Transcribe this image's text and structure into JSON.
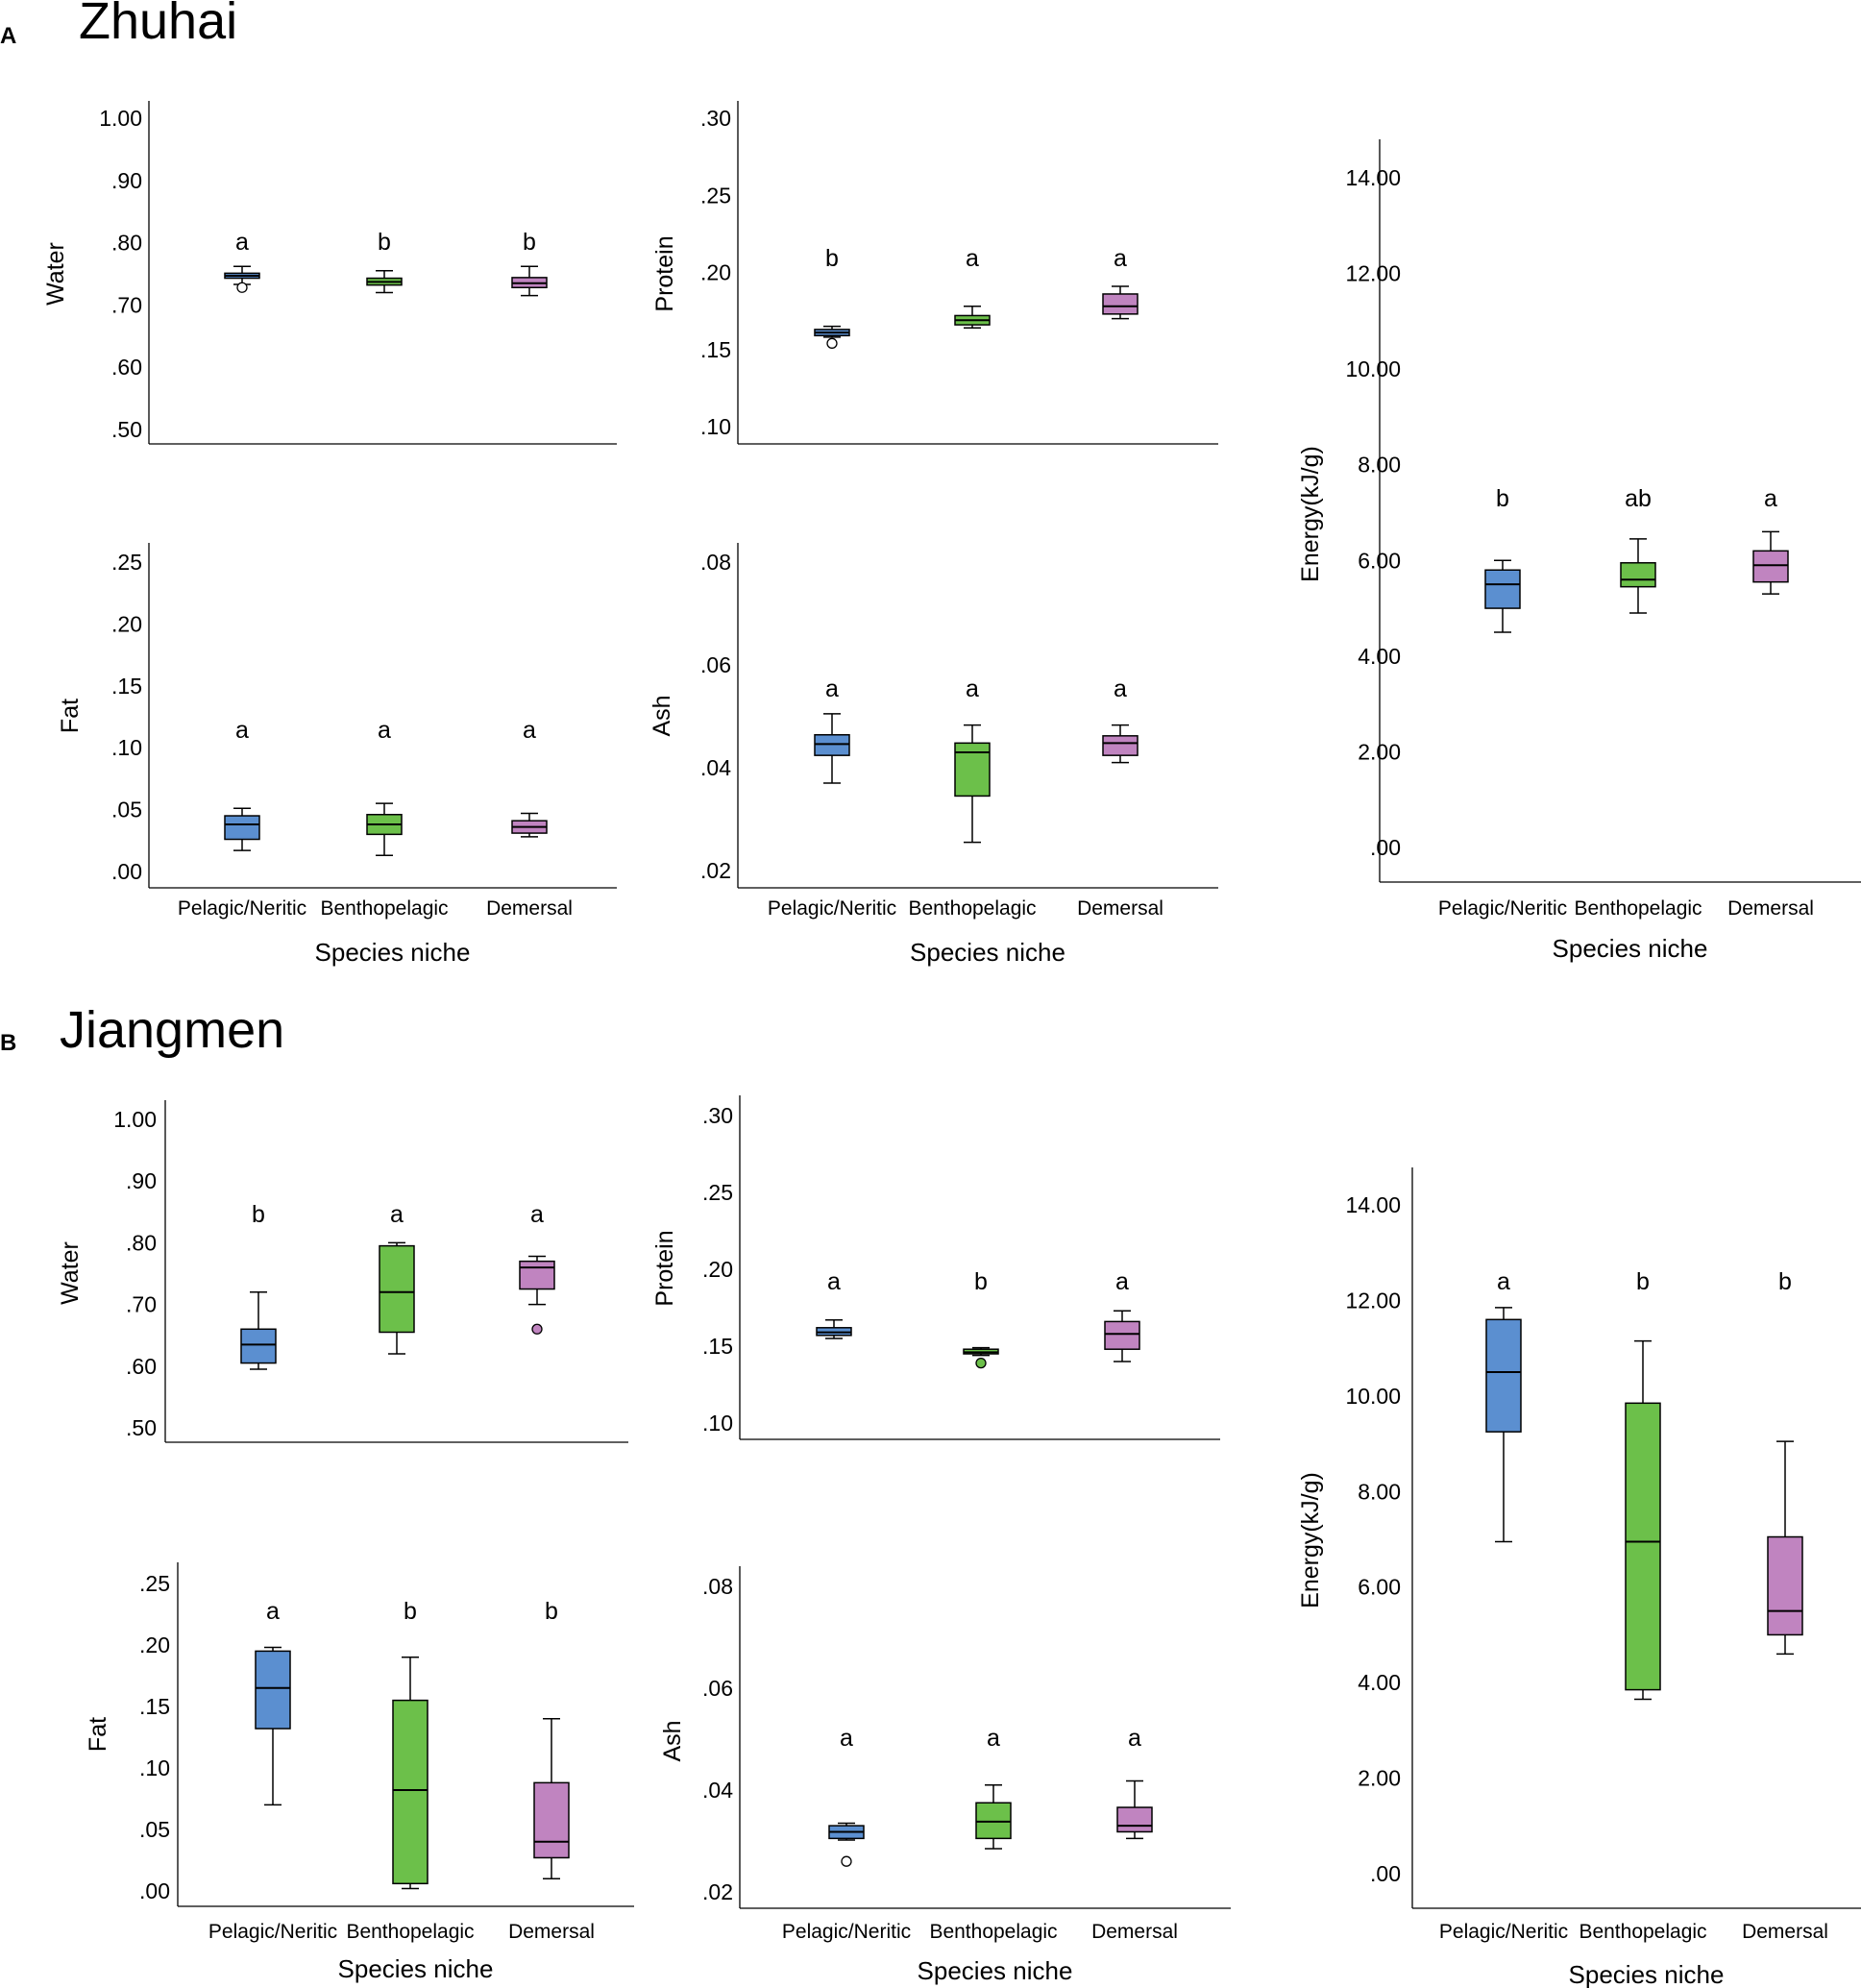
{
  "panels": {
    "A": {
      "letter": "A",
      "title": "Zhuhai"
    },
    "B": {
      "letter": "B",
      "title": "Jiangmen"
    }
  },
  "colors": {
    "pelagic": "#5b8fd0",
    "benthopelagic": "#6cc04a",
    "demersal": "#c084c0"
  },
  "chart_data": [
    {
      "id": "zh-water",
      "type": "box",
      "panel": "A",
      "ylabel": "Water",
      "xlabel": "",
      "ylim": [
        0.5,
        1.0
      ],
      "ticks": [
        1.0,
        0.9,
        0.8,
        0.7,
        0.6,
        0.5
      ],
      "tick_labels": [
        "1.00",
        ".90",
        ".80",
        ".70",
        ".60",
        ".50"
      ],
      "categories": [
        "Pelagic/Neritic",
        "Benthopelagic",
        "Demersal"
      ],
      "show_categories": false,
      "boxes": [
        {
          "min": 0.733,
          "q1": 0.743,
          "median": 0.747,
          "q3": 0.751,
          "max": 0.762,
          "outliers": [
            0.728
          ],
          "letter": "a"
        },
        {
          "min": 0.72,
          "q1": 0.732,
          "median": 0.737,
          "q3": 0.743,
          "max": 0.755,
          "outliers": [],
          "letter": "b"
        },
        {
          "min": 0.715,
          "q1": 0.728,
          "median": 0.735,
          "q3": 0.744,
          "max": 0.762,
          "outliers": [],
          "letter": "b"
        }
      ]
    },
    {
      "id": "zh-protein",
      "type": "box",
      "panel": "A",
      "ylabel": "Protein",
      "xlabel": "",
      "ylim": [
        0.1,
        0.3
      ],
      "ticks": [
        0.3,
        0.25,
        0.2,
        0.15,
        0.1
      ],
      "tick_labels": [
        ".30",
        ".25",
        ".20",
        ".15",
        ".10"
      ],
      "categories": [
        "Pelagic/Neritic",
        "Benthopelagic",
        "Demersal"
      ],
      "show_categories": false,
      "boxes": [
        {
          "min": 0.158,
          "q1": 0.159,
          "median": 0.161,
          "q3": 0.163,
          "max": 0.165,
          "outliers": [
            0.154
          ],
          "letter": "b"
        },
        {
          "min": 0.164,
          "q1": 0.166,
          "median": 0.169,
          "q3": 0.172,
          "max": 0.178,
          "outliers": [],
          "letter": "a"
        },
        {
          "min": 0.17,
          "q1": 0.173,
          "median": 0.178,
          "q3": 0.186,
          "max": 0.191,
          "outliers": [],
          "letter": "a"
        }
      ]
    },
    {
      "id": "zh-fat",
      "type": "box",
      "panel": "A",
      "ylabel": "Fat",
      "xlabel": "Species niche",
      "ylim": [
        0.0,
        0.25
      ],
      "ticks": [
        0.25,
        0.2,
        0.15,
        0.1,
        0.05,
        0.0
      ],
      "tick_labels": [
        ".25",
        ".20",
        ".15",
        ".10",
        ".05",
        ".00"
      ],
      "categories": [
        "Pelagic/Neritic",
        "Benthopelagic",
        "Demersal"
      ],
      "show_categories": true,
      "boxes": [
        {
          "min": 0.017,
          "q1": 0.026,
          "median": 0.038,
          "q3": 0.045,
          "max": 0.051,
          "outliers": [],
          "letter": "a"
        },
        {
          "min": 0.013,
          "q1": 0.03,
          "median": 0.038,
          "q3": 0.046,
          "max": 0.055,
          "outliers": [],
          "letter": "a"
        },
        {
          "min": 0.028,
          "q1": 0.031,
          "median": 0.036,
          "q3": 0.041,
          "max": 0.047,
          "outliers": [],
          "letter": "a"
        }
      ]
    },
    {
      "id": "zh-ash",
      "type": "box",
      "panel": "A",
      "ylabel": "Ash",
      "xlabel": "Species niche",
      "ylim": [
        0.02,
        0.08
      ],
      "ticks": [
        0.08,
        0.06,
        0.04,
        0.02
      ],
      "tick_labels": [
        ".08",
        ".06",
        ".04",
        ".02"
      ],
      "categories": [
        "Pelagic/Neritic",
        "Benthopelagic",
        "Demersal"
      ],
      "show_categories": true,
      "boxes": [
        {
          "min": 0.037,
          "q1": 0.0424,
          "median": 0.0446,
          "q3": 0.0464,
          "max": 0.0505,
          "outliers": [],
          "letter": "a"
        },
        {
          "min": 0.0255,
          "q1": 0.0345,
          "median": 0.043,
          "q3": 0.0448,
          "max": 0.0483,
          "outliers": [],
          "letter": "a"
        },
        {
          "min": 0.041,
          "q1": 0.0424,
          "median": 0.0448,
          "q3": 0.0462,
          "max": 0.0483,
          "outliers": [],
          "letter": "a"
        }
      ]
    },
    {
      "id": "zh-energy",
      "type": "box",
      "panel": "A",
      "ylabel": "Energy(kJ/g)",
      "xlabel": "Species niche",
      "ylim": [
        -0.7,
        14.9
      ],
      "ticks": [
        14.0,
        12.0,
        10.0,
        8.0,
        6.0,
        4.0,
        2.0,
        0.0
      ],
      "tick_labels": [
        "14.00",
        "12.00",
        "10.00",
        "8.00",
        "6.00",
        "4.00",
        "2.00",
        ".00"
      ],
      "categories": [
        "Pelagic/Neritic",
        "Benthopelagic",
        "Demersal"
      ],
      "show_categories": true,
      "boxes": [
        {
          "min": 4.5,
          "q1": 5.0,
          "median": 5.5,
          "q3": 5.8,
          "max": 6.0,
          "outliers": [],
          "letter": "b"
        },
        {
          "min": 4.9,
          "q1": 5.45,
          "median": 5.6,
          "q3": 5.95,
          "max": 6.45,
          "outliers": [],
          "letter": "ab"
        },
        {
          "min": 5.3,
          "q1": 5.55,
          "median": 5.9,
          "q3": 6.2,
          "max": 6.6,
          "outliers": [],
          "letter": "a"
        }
      ]
    },
    {
      "id": "jm-water",
      "type": "box",
      "panel": "B",
      "ylabel": "Water",
      "xlabel": "",
      "ylim": [
        0.5,
        1.0
      ],
      "ticks": [
        1.0,
        0.9,
        0.8,
        0.7,
        0.6,
        0.5
      ],
      "tick_labels": [
        "1.00",
        ".90",
        ".80",
        ".70",
        ".60",
        ".50"
      ],
      "categories": [
        "Pelagic/Neritic",
        "Benthopelagic",
        "Demersal"
      ],
      "show_categories": false,
      "boxes": [
        {
          "min": 0.595,
          "q1": 0.605,
          "median": 0.635,
          "q3": 0.66,
          "max": 0.72,
          "outliers": [],
          "letter": "b"
        },
        {
          "min": 0.62,
          "q1": 0.655,
          "median": 0.72,
          "q3": 0.795,
          "max": 0.8,
          "outliers": [],
          "letter": "a"
        },
        {
          "min": 0.7,
          "q1": 0.725,
          "median": 0.76,
          "q3": 0.77,
          "max": 0.778,
          "outliers": [
            0.66
          ],
          "letter": "a"
        }
      ]
    },
    {
      "id": "jm-protein",
      "type": "box",
      "panel": "B",
      "ylabel": "Protein",
      "xlabel": "",
      "ylim": [
        0.1,
        0.3
      ],
      "ticks": [
        0.3,
        0.25,
        0.2,
        0.15,
        0.1
      ],
      "tick_labels": [
        ".30",
        ".25",
        ".20",
        ".15",
        ".10"
      ],
      "categories": [
        "Pelagic/Neritic",
        "Benthopelagic",
        "Demersal"
      ],
      "show_categories": false,
      "boxes": [
        {
          "min": 0.155,
          "q1": 0.157,
          "median": 0.159,
          "q3": 0.162,
          "max": 0.167,
          "outliers": [],
          "letter": "a"
        },
        {
          "min": 0.144,
          "q1": 0.145,
          "median": 0.146,
          "q3": 0.148,
          "max": 0.149,
          "outliers": [
            0.139
          ],
          "letter": "b"
        },
        {
          "min": 0.14,
          "q1": 0.148,
          "median": 0.158,
          "q3": 0.166,
          "max": 0.173,
          "outliers": [],
          "letter": "a"
        }
      ]
    },
    {
      "id": "jm-fat",
      "type": "box",
      "panel": "B",
      "ylabel": "Fat",
      "xlabel": "Species niche",
      "ylim": [
        0.0,
        0.25
      ],
      "ticks": [
        0.25,
        0.2,
        0.15,
        0.1,
        0.05,
        0.0
      ],
      "tick_labels": [
        ".25",
        ".20",
        ".15",
        ".10",
        ".05",
        ".00"
      ],
      "categories": [
        "Pelagic/Neritic",
        "Benthopelagic",
        "Demersal"
      ],
      "show_categories": true,
      "boxes": [
        {
          "min": 0.07,
          "q1": 0.132,
          "median": 0.165,
          "q3": 0.195,
          "max": 0.198,
          "outliers": [],
          "letter": "a"
        },
        {
          "min": 0.002,
          "q1": 0.006,
          "median": 0.082,
          "q3": 0.155,
          "max": 0.19,
          "outliers": [],
          "letter": "b"
        },
        {
          "min": 0.01,
          "q1": 0.027,
          "median": 0.04,
          "q3": 0.088,
          "max": 0.14,
          "outliers": [],
          "letter": "b"
        }
      ]
    },
    {
      "id": "jm-ash",
      "type": "box",
      "panel": "B",
      "ylabel": "Ash",
      "xlabel": "Species niche",
      "ylim": [
        0.02,
        0.08
      ],
      "ticks": [
        0.08,
        0.06,
        0.04,
        0.02
      ],
      "tick_labels": [
        ".08",
        ".06",
        ".04",
        ".02"
      ],
      "categories": [
        "Pelagic/Neritic",
        "Benthopelagic",
        "Demersal"
      ],
      "show_categories": true,
      "boxes": [
        {
          "min": 0.0302,
          "q1": 0.0305,
          "median": 0.0318,
          "q3": 0.033,
          "max": 0.0335,
          "outliers": [
            0.026
          ],
          "letter": "a"
        },
        {
          "min": 0.0285,
          "q1": 0.0305,
          "median": 0.0338,
          "q3": 0.0375,
          "max": 0.041,
          "outliers": [],
          "letter": "a"
        },
        {
          "min": 0.0305,
          "q1": 0.0318,
          "median": 0.033,
          "q3": 0.0366,
          "max": 0.0418,
          "outliers": [],
          "letter": "a"
        }
      ]
    },
    {
      "id": "jm-energy",
      "type": "box",
      "panel": "B",
      "ylabel": "Energy(kJ/g)",
      "xlabel": "Species niche",
      "ylim": [
        -0.7,
        14.9
      ],
      "ticks": [
        14.0,
        12.0,
        10.0,
        8.0,
        6.0,
        4.0,
        2.0,
        0.0
      ],
      "tick_labels": [
        "14.00",
        "12.00",
        "10.00",
        "8.00",
        "6.00",
        "4.00",
        "2.00",
        ".00"
      ],
      "categories": [
        "Pelagic/Neritic",
        "Benthopelagic",
        "Demersal"
      ],
      "show_categories": true,
      "boxes": [
        {
          "min": 6.95,
          "q1": 9.25,
          "median": 10.5,
          "q3": 11.6,
          "max": 11.85,
          "outliers": [],
          "letter": "a"
        },
        {
          "min": 3.65,
          "q1": 3.85,
          "median": 6.95,
          "q3": 9.85,
          "max": 11.15,
          "outliers": [],
          "letter": "b"
        },
        {
          "min": 4.6,
          "q1": 5.0,
          "median": 5.5,
          "q3": 7.05,
          "max": 9.05,
          "outliers": [],
          "letter": "b"
        }
      ]
    }
  ]
}
